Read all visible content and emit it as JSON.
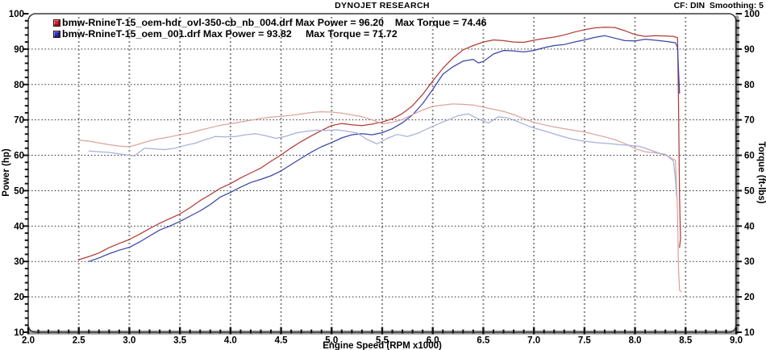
{
  "header": {
    "title": "DYNOJET RESEARCH",
    "right_info": "CF: DIN  Smoothing: 5"
  },
  "legend": {
    "rows": [
      {
        "swatch_color": "#da2128",
        "file": "bmw-RnineT-15_oem-hdr_ovl-350-cb_nb_004.drf",
        "max_power": "96.20",
        "max_torque": "74.46",
        "text": "bmw-RnineT-15_oem-hdr_ovl-350-cb_nb_004.drf Max Power = 96.20    Max Torque = 74.46"
      },
      {
        "swatch_color": "#2b31c8",
        "file": "bmw-RnineT-15_oem_001.drf",
        "max_power": "93.82",
        "max_torque": "71.72",
        "text": "bmw-RnineT-15_oem_001.drf Max Power = 93.82     Max Torque = 71.72"
      }
    ]
  },
  "chart_data": {
    "type": "line",
    "title": "DYNOJET RESEARCH",
    "xlabel": "Engine Speed (RPM x1000)",
    "ylabel_left": "Power (hp)",
    "ylabel_right": "Torque (ft-lbs)",
    "xlim": [
      2.0,
      9.0
    ],
    "ylim": [
      10,
      100
    ],
    "x_ticks": [
      2.0,
      2.5,
      3.0,
      3.5,
      4.0,
      4.5,
      5.0,
      5.5,
      6.0,
      6.5,
      7.0,
      7.5,
      8.0,
      8.5,
      9.0
    ],
    "y_ticks": [
      10,
      20,
      30,
      40,
      50,
      60,
      70,
      80,
      90,
      100
    ],
    "x_minor_step": 0.1,
    "y_minor_step": 2,
    "grid": true,
    "legend_position": "top-left",
    "colors": {
      "power_red": "#b23c35",
      "power_blue": "#3a45a5",
      "torque_red": "#dba49d",
      "torque_blue": "#a7b0d9",
      "axis_bar": "#9c9c9c",
      "border": "#3c3c3c"
    },
    "series": [
      {
        "name": "power bmw-RnineT-15_oem-hdr_ovl-350-cb_nb_004.drf (hp)",
        "color": "#b23c35",
        "points": [
          [
            2.5,
            30.5
          ],
          [
            2.6,
            31.4
          ],
          [
            2.7,
            32.4
          ],
          [
            2.8,
            33.9
          ],
          [
            2.9,
            35.1
          ],
          [
            3.0,
            36.2
          ],
          [
            3.1,
            37.7
          ],
          [
            3.2,
            39.3
          ],
          [
            3.3,
            40.8
          ],
          [
            3.4,
            42.1
          ],
          [
            3.5,
            43.4
          ],
          [
            3.6,
            45.2
          ],
          [
            3.7,
            47.2
          ],
          [
            3.8,
            48.9
          ],
          [
            3.9,
            50.7
          ],
          [
            4.0,
            52.0
          ],
          [
            4.1,
            53.6
          ],
          [
            4.2,
            55.0
          ],
          [
            4.3,
            56.4
          ],
          [
            4.4,
            58.3
          ],
          [
            4.5,
            60.1
          ],
          [
            4.6,
            62.1
          ],
          [
            4.7,
            63.9
          ],
          [
            4.8,
            65.5
          ],
          [
            4.9,
            67.0
          ],
          [
            5.0,
            68.4
          ],
          [
            5.1,
            69.0
          ],
          [
            5.2,
            68.6
          ],
          [
            5.3,
            68.4
          ],
          [
            5.4,
            68.8
          ],
          [
            5.5,
            69.4
          ],
          [
            5.6,
            70.3
          ],
          [
            5.7,
            71.8
          ],
          [
            5.8,
            74.0
          ],
          [
            5.9,
            77.2
          ],
          [
            6.0,
            81.0
          ],
          [
            6.1,
            84.6
          ],
          [
            6.2,
            87.5
          ],
          [
            6.3,
            89.8
          ],
          [
            6.4,
            91.0
          ],
          [
            6.5,
            92.0
          ],
          [
            6.6,
            92.6
          ],
          [
            6.7,
            92.4
          ],
          [
            6.8,
            92.0
          ],
          [
            6.9,
            91.9
          ],
          [
            7.0,
            92.5
          ],
          [
            7.1,
            93.0
          ],
          [
            7.2,
            93.4
          ],
          [
            7.3,
            94.0
          ],
          [
            7.4,
            94.8
          ],
          [
            7.5,
            95.5
          ],
          [
            7.6,
            96.0
          ],
          [
            7.7,
            96.2
          ],
          [
            7.8,
            96.1
          ],
          [
            7.9,
            95.2
          ],
          [
            8.0,
            94.1
          ],
          [
            8.1,
            93.6
          ],
          [
            8.2,
            93.8
          ],
          [
            8.3,
            93.7
          ],
          [
            8.38,
            93.6
          ],
          [
            8.42,
            93.2
          ],
          [
            8.43,
            75.0
          ],
          [
            8.44,
            48.0
          ],
          [
            8.45,
            36.5
          ],
          [
            8.44,
            34.0
          ]
        ]
      },
      {
        "name": "power bmw-RnineT-15_oem_001.drf (hp)",
        "color": "#3a45a5",
        "points": [
          [
            2.6,
            30.0
          ],
          [
            2.7,
            31.0
          ],
          [
            2.8,
            32.2
          ],
          [
            2.9,
            33.2
          ],
          [
            3.0,
            34.0
          ],
          [
            3.1,
            35.5
          ],
          [
            3.2,
            37.2
          ],
          [
            3.3,
            38.9
          ],
          [
            3.4,
            40.0
          ],
          [
            3.5,
            41.3
          ],
          [
            3.6,
            42.8
          ],
          [
            3.7,
            44.3
          ],
          [
            3.8,
            46.1
          ],
          [
            3.9,
            48.2
          ],
          [
            4.0,
            49.5
          ],
          [
            4.1,
            51.0
          ],
          [
            4.2,
            52.3
          ],
          [
            4.3,
            53.2
          ],
          [
            4.4,
            54.2
          ],
          [
            4.5,
            55.6
          ],
          [
            4.6,
            57.4
          ],
          [
            4.7,
            59.2
          ],
          [
            4.8,
            60.9
          ],
          [
            4.9,
            62.4
          ],
          [
            5.0,
            63.6
          ],
          [
            5.1,
            64.9
          ],
          [
            5.2,
            65.8
          ],
          [
            5.3,
            66.1
          ],
          [
            5.4,
            65.8
          ],
          [
            5.5,
            66.4
          ],
          [
            5.6,
            67.5
          ],
          [
            5.7,
            69.2
          ],
          [
            5.8,
            71.4
          ],
          [
            5.9,
            74.6
          ],
          [
            6.0,
            78.6
          ],
          [
            6.1,
            82.9
          ],
          [
            6.2,
            85.0
          ],
          [
            6.3,
            86.6
          ],
          [
            6.4,
            87.1
          ],
          [
            6.45,
            86.1
          ],
          [
            6.5,
            86.5
          ],
          [
            6.6,
            88.6
          ],
          [
            6.7,
            89.6
          ],
          [
            6.8,
            89.5
          ],
          [
            6.9,
            89.2
          ],
          [
            7.0,
            89.6
          ],
          [
            7.1,
            90.4
          ],
          [
            7.2,
            91.0
          ],
          [
            7.3,
            91.3
          ],
          [
            7.4,
            92.0
          ],
          [
            7.5,
            92.6
          ],
          [
            7.6,
            93.3
          ],
          [
            7.7,
            93.8
          ],
          [
            7.8,
            93.1
          ],
          [
            7.9,
            92.4
          ],
          [
            8.0,
            92.3
          ],
          [
            8.1,
            92.8
          ],
          [
            8.2,
            92.5
          ],
          [
            8.3,
            92.2
          ],
          [
            8.4,
            91.8
          ],
          [
            8.42,
            90.5
          ],
          [
            8.43,
            84.0
          ],
          [
            8.44,
            77.5
          ]
        ]
      },
      {
        "name": "torque bmw-RnineT-15_oem-hdr_ovl-350-cb_nb_004.drf (ft-lbs)",
        "color": "#dba49d",
        "points": [
          [
            2.5,
            64.3
          ],
          [
            2.6,
            64.0
          ],
          [
            2.7,
            63.5
          ],
          [
            2.8,
            63.0
          ],
          [
            2.9,
            62.6
          ],
          [
            3.0,
            62.4
          ],
          [
            3.1,
            63.2
          ],
          [
            3.2,
            64.1
          ],
          [
            3.3,
            64.7
          ],
          [
            3.4,
            65.2
          ],
          [
            3.5,
            65.8
          ],
          [
            3.6,
            66.3
          ],
          [
            3.7,
            67.1
          ],
          [
            3.8,
            67.8
          ],
          [
            3.9,
            68.5
          ],
          [
            4.0,
            68.9
          ],
          [
            4.1,
            69.4
          ],
          [
            4.2,
            69.9
          ],
          [
            4.3,
            70.4
          ],
          [
            4.4,
            70.8
          ],
          [
            4.5,
            71.0
          ],
          [
            4.6,
            71.3
          ],
          [
            4.7,
            71.7
          ],
          [
            4.8,
            72.1
          ],
          [
            4.9,
            72.3
          ],
          [
            5.0,
            72.2
          ],
          [
            5.1,
            71.9
          ],
          [
            5.2,
            71.4
          ],
          [
            5.3,
            70.9
          ],
          [
            5.4,
            70.0
          ],
          [
            5.5,
            68.9
          ],
          [
            5.6,
            69.3
          ],
          [
            5.7,
            70.1
          ],
          [
            5.8,
            71.5
          ],
          [
            5.9,
            72.8
          ],
          [
            6.0,
            73.8
          ],
          [
            6.1,
            74.2
          ],
          [
            6.2,
            74.5
          ],
          [
            6.3,
            74.4
          ],
          [
            6.4,
            74.2
          ],
          [
            6.5,
            73.6
          ],
          [
            6.6,
            73.0
          ],
          [
            6.7,
            72.4
          ],
          [
            6.8,
            71.5
          ],
          [
            6.9,
            70.3
          ],
          [
            7.0,
            69.3
          ],
          [
            7.1,
            68.6
          ],
          [
            7.2,
            68.0
          ],
          [
            7.3,
            67.5
          ],
          [
            7.4,
            67.0
          ],
          [
            7.5,
            66.6
          ],
          [
            7.6,
            65.9
          ],
          [
            7.7,
            65.2
          ],
          [
            7.8,
            64.4
          ],
          [
            7.9,
            63.3
          ],
          [
            8.0,
            61.9
          ],
          [
            8.1,
            61.0
          ],
          [
            8.2,
            60.7
          ],
          [
            8.3,
            60.3
          ],
          [
            8.35,
            59.3
          ],
          [
            8.4,
            58.6
          ],
          [
            8.42,
            44.0
          ],
          [
            8.43,
            28.0
          ],
          [
            8.44,
            21.8
          ],
          [
            8.46,
            21.5
          ]
        ]
      },
      {
        "name": "torque bmw-RnineT-15_oem_001.drf (ft-lbs)",
        "color": "#a7b0d9",
        "points": [
          [
            2.6,
            61.2
          ],
          [
            2.7,
            61.0
          ],
          [
            2.8,
            60.8
          ],
          [
            2.9,
            60.4
          ],
          [
            3.0,
            60.0
          ],
          [
            3.05,
            59.8
          ],
          [
            3.15,
            62.0
          ],
          [
            3.25,
            61.8
          ],
          [
            3.35,
            61.6
          ],
          [
            3.45,
            62.0
          ],
          [
            3.55,
            62.8
          ],
          [
            3.65,
            63.4
          ],
          [
            3.75,
            64.4
          ],
          [
            3.85,
            65.3
          ],
          [
            3.95,
            65.2
          ],
          [
            4.05,
            65.3
          ],
          [
            4.15,
            65.8
          ],
          [
            4.25,
            66.1
          ],
          [
            4.35,
            65.5
          ],
          [
            4.45,
            64.8
          ],
          [
            4.55,
            65.4
          ],
          [
            4.65,
            66.3
          ],
          [
            4.75,
            66.8
          ],
          [
            4.85,
            67.1
          ],
          [
            4.95,
            67.0
          ],
          [
            5.05,
            67.2
          ],
          [
            5.15,
            66.8
          ],
          [
            5.25,
            66.3
          ],
          [
            5.35,
            64.5
          ],
          [
            5.45,
            63.2
          ],
          [
            5.55,
            64.8
          ],
          [
            5.65,
            65.9
          ],
          [
            5.75,
            65.3
          ],
          [
            5.85,
            66.2
          ],
          [
            5.95,
            67.5
          ],
          [
            6.05,
            68.8
          ],
          [
            6.15,
            70.0
          ],
          [
            6.25,
            71.2
          ],
          [
            6.35,
            71.7
          ],
          [
            6.45,
            70.3
          ],
          [
            6.55,
            69.1
          ],
          [
            6.65,
            70.9
          ],
          [
            6.75,
            70.5
          ],
          [
            6.85,
            69.4
          ],
          [
            6.95,
            68.2
          ],
          [
            7.05,
            67.3
          ],
          [
            7.15,
            66.5
          ],
          [
            7.25,
            65.6
          ],
          [
            7.35,
            64.8
          ],
          [
            7.45,
            64.2
          ],
          [
            7.55,
            63.8
          ],
          [
            7.65,
            63.5
          ],
          [
            7.75,
            63.3
          ],
          [
            7.85,
            63.0
          ],
          [
            7.95,
            62.8
          ],
          [
            8.05,
            62.5
          ],
          [
            8.15,
            61.5
          ],
          [
            8.25,
            60.5
          ],
          [
            8.32,
            59.8
          ],
          [
            8.38,
            58.4
          ],
          [
            8.4,
            53.0
          ],
          [
            8.41,
            48.5
          ]
        ]
      }
    ]
  }
}
